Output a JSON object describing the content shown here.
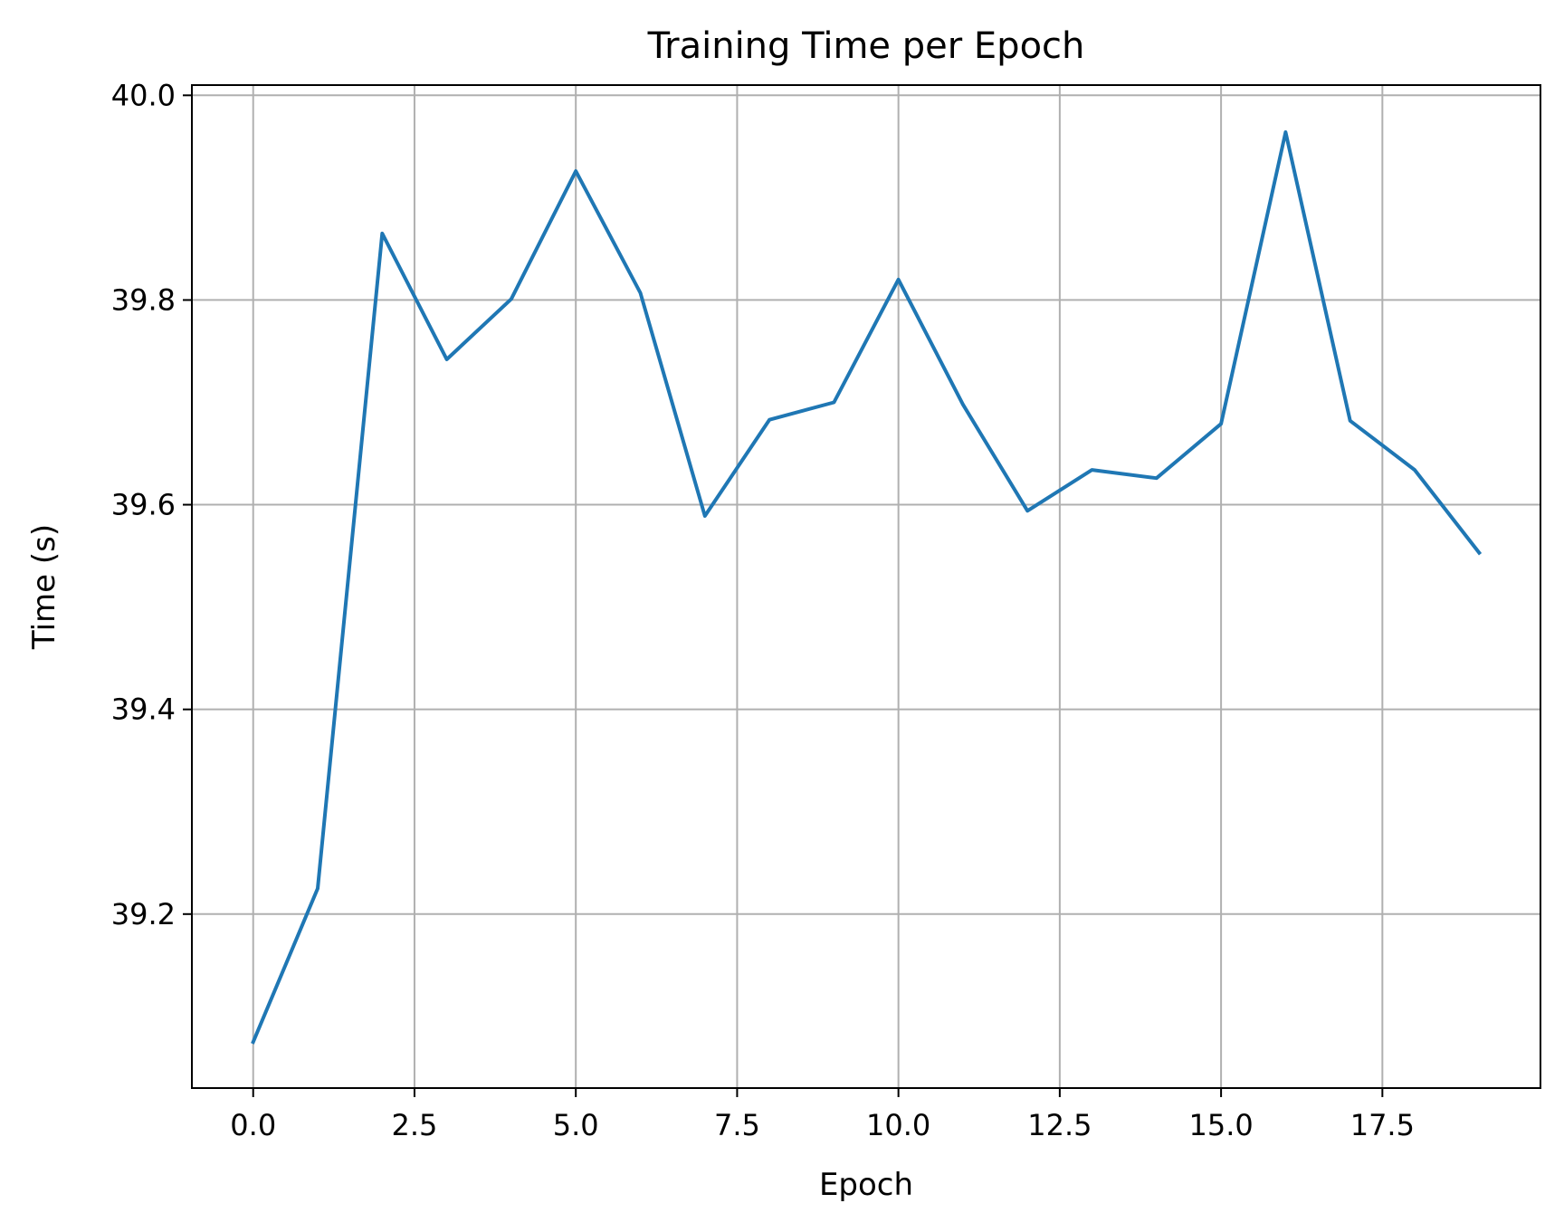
{
  "chart_data": {
    "type": "line",
    "title": "Training Time per Epoch",
    "xlabel": "Epoch",
    "ylabel": "Time (s)",
    "xlim": [
      -0.95,
      19.95
    ],
    "ylim": [
      39.03,
      40.01
    ],
    "grid": true,
    "x_ticks": [
      0.0,
      2.5,
      5.0,
      7.5,
      10.0,
      12.5,
      15.0,
      17.5
    ],
    "x_tick_labels": [
      "0.0",
      "2.5",
      "5.0",
      "7.5",
      "10.0",
      "12.5",
      "15.0",
      "17.5"
    ],
    "y_ticks": [
      39.2,
      39.4,
      39.6,
      39.8,
      40.0
    ],
    "y_tick_labels": [
      "39.2",
      "39.4",
      "39.6",
      "39.8",
      "40.0"
    ],
    "series": [
      {
        "color": "#1f77b4",
        "x": [
          0,
          1,
          2,
          3,
          4,
          5,
          6,
          7,
          8,
          9,
          10,
          11,
          12,
          13,
          14,
          15,
          16,
          17,
          18,
          19
        ],
        "y": [
          39.075,
          39.225,
          39.865,
          39.742,
          39.801,
          39.926,
          39.807,
          39.589,
          39.683,
          39.7,
          39.82,
          39.698,
          39.594,
          39.634,
          39.626,
          39.679,
          39.964,
          39.682,
          39.634,
          39.553
        ]
      }
    ]
  }
}
